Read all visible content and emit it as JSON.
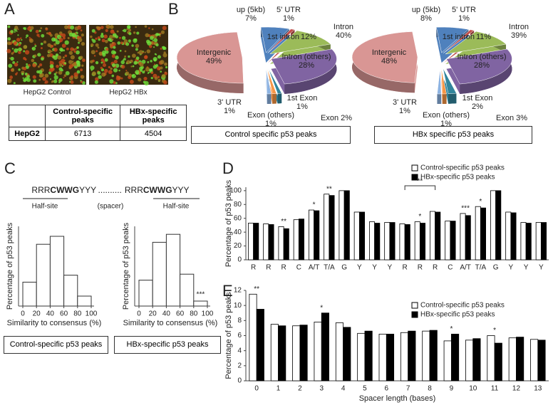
{
  "panel_labels": [
    "A",
    "B",
    "C",
    "D",
    "E"
  ],
  "panel_a": {
    "images": [
      {
        "caption": "HepG2 Control"
      },
      {
        "caption": "HepG2 HBx"
      }
    ],
    "table": {
      "header": [
        "Control-specific peaks",
        "HBx-specific peaks"
      ],
      "rows": [
        {
          "label": "HepG2",
          "cells": [
            "6713",
            "4504"
          ]
        }
      ]
    }
  },
  "panel_c": {
    "motif": [
      "RRR",
      "CWWG",
      "YYY",
      "..........",
      "RRR",
      "CWWG",
      "YYY"
    ],
    "motif_labels": [
      "Half-site",
      "(spacer)",
      "Half-site"
    ]
  },
  "chart_data": [
    {
      "type": "pie",
      "caption": "Control specific p53 peaks",
      "slices": [
        {
          "name": "up (5kb)",
          "value": 7,
          "value_label": "7%",
          "color": "#4f81bd"
        },
        {
          "name": "5' UTR",
          "value": 1,
          "value_label": "1%",
          "color": "#c0504d"
        },
        {
          "name": "1st intron",
          "value": 12,
          "value_label": "12%",
          "color": "#9bbb59"
        },
        {
          "name": "Intron (others)",
          "value": 28,
          "value_label": "28%",
          "color": "#8064a2"
        },
        {
          "name": "1st Exon",
          "value": 1,
          "value_label": "1%",
          "color": "#31859c"
        },
        {
          "name": "Exon (others)",
          "value": 1,
          "value_label": "1%",
          "color": "#f79646"
        },
        {
          "name": "3' UTR",
          "value": 1,
          "value_label": "1%",
          "color": "#8db3e2"
        },
        {
          "name": "Intergenic",
          "value": 49,
          "value_label": "49%",
          "color": "#d99694"
        }
      ],
      "group_labels": [
        [
          "Intron",
          "40%"
        ],
        [
          "Exon 2%"
        ]
      ]
    },
    {
      "type": "pie",
      "caption": "HBx specific p53 peaks",
      "slices": [
        {
          "name": "up (5kb)",
          "value": 8,
          "value_label": "8%",
          "color": "#4f81bd"
        },
        {
          "name": "5' UTR",
          "value": 1,
          "value_label": "1%",
          "color": "#c0504d"
        },
        {
          "name": "1st intron",
          "value": 11,
          "value_label": "11%",
          "color": "#9bbb59"
        },
        {
          "name": "Intron (others)",
          "value": 28,
          "value_label": "28%",
          "color": "#8064a2"
        },
        {
          "name": "1st Exon",
          "value": 2,
          "value_label": "2%",
          "color": "#31859c"
        },
        {
          "name": "Exon (others)",
          "value": 1,
          "value_label": "1%",
          "color": "#f79646"
        },
        {
          "name": "3' UTR",
          "value": 1,
          "value_label": "1%",
          "color": "#8db3e2"
        },
        {
          "name": "Intergenic",
          "value": 48,
          "value_label": "48%",
          "color": "#d99694"
        }
      ],
      "group_labels": [
        [
          "Intron",
          "39%"
        ],
        [
          "Exon 3%"
        ]
      ]
    },
    {
      "type": "histogram",
      "caption": "Control-specific p53 peaks",
      "bins": [
        0,
        20,
        40,
        60,
        80,
        100
      ],
      "values": [
        12,
        31,
        35,
        15.5,
        5
      ],
      "xlim": [
        0,
        100
      ],
      "xticks": [
        0,
        20,
        40,
        60,
        80,
        100
      ],
      "ylim": [
        0,
        40
      ],
      "xlabel": "Similarity to consensus (%)",
      "ylabel": "Percentage of p53 peaks",
      "annotations": []
    },
    {
      "type": "histogram",
      "caption": "HBx-specific p53 peaks",
      "bins": [
        0,
        20,
        40,
        60,
        80,
        100
      ],
      "values": [
        13,
        32,
        36,
        16,
        2.5
      ],
      "xlim": [
        0,
        100
      ],
      "xticks": [
        0,
        20,
        40,
        60,
        80,
        100
      ],
      "ylim": [
        0,
        40
      ],
      "xlabel": "Similarity to consensus (%)",
      "ylabel": "Percentage of p53 peaks",
      "annotations": [
        {
          "text": "***",
          "bin": 4
        }
      ]
    },
    {
      "type": "bar",
      "ylabel": "Percentage of p53 peaks",
      "categories": [
        "R",
        "R",
        "R",
        "C",
        "A/T",
        "T/A",
        "G",
        "Y",
        "Y",
        "Y",
        "R",
        "R",
        "R",
        "C",
        "A/T",
        "T/A",
        "G",
        "Y",
        "Y",
        "Y"
      ],
      "series": [
        {
          "name": "Control-specific p53 peaks",
          "color": "#ffffff",
          "values": [
            53,
            52,
            48,
            58,
            72,
            95,
            100,
            69,
            55,
            54,
            52,
            55,
            70,
            56,
            67,
            77,
            100,
            69,
            54,
            54
          ]
        },
        {
          "name": "HBx-specific p53 peaks",
          "color": "#000000",
          "values": [
            53,
            51,
            45,
            59,
            71,
            93,
            100,
            69,
            53,
            54,
            51,
            53,
            69,
            56,
            64,
            75,
            100,
            68,
            53,
            54
          ]
        }
      ],
      "ylim": [
        0,
        105
      ],
      "yticks": [
        0,
        20,
        40,
        60,
        80,
        100
      ],
      "annotations": [
        {
          "text": "**",
          "category": 2
        },
        {
          "text": "*",
          "category": 4
        },
        {
          "text": "**",
          "category": 5
        },
        {
          "text": "**",
          "span": [
            10,
            12
          ]
        },
        {
          "text": "*",
          "category": 11
        },
        {
          "text": "***",
          "category": 14
        },
        {
          "text": "*",
          "category": 15
        }
      ]
    },
    {
      "type": "bar",
      "ylabel": "Percentage of p53 peaks",
      "xlabel": "Spacer length (bases)",
      "categories": [
        "0",
        "1",
        "2",
        "3",
        "4",
        "5",
        "6",
        "7",
        "8",
        "9",
        "10",
        "11",
        "12",
        "13"
      ],
      "series": [
        {
          "name": "Control-specific p53 peaks",
          "color": "#ffffff",
          "values": [
            11.5,
            7.5,
            7.3,
            7.8,
            7.7,
            6.3,
            6.2,
            6.4,
            6.6,
            5.3,
            5.4,
            6.0,
            5.7,
            5.5
          ]
        },
        {
          "name": "HBx-specific p53 peaks",
          "color": "#000000",
          "values": [
            9.5,
            7.3,
            7.4,
            9.0,
            7.1,
            6.6,
            6.2,
            6.6,
            6.7,
            6.2,
            5.6,
            5.0,
            5.8,
            5.4
          ]
        }
      ],
      "ylim": [
        0,
        12
      ],
      "yticks": [
        0,
        2,
        4,
        6,
        8,
        10,
        12
      ],
      "annotations": [
        {
          "text": "**",
          "category": 0
        },
        {
          "text": "*",
          "category": 3
        },
        {
          "text": "*",
          "category": 9
        },
        {
          "text": "*",
          "category": 11
        }
      ]
    }
  ]
}
